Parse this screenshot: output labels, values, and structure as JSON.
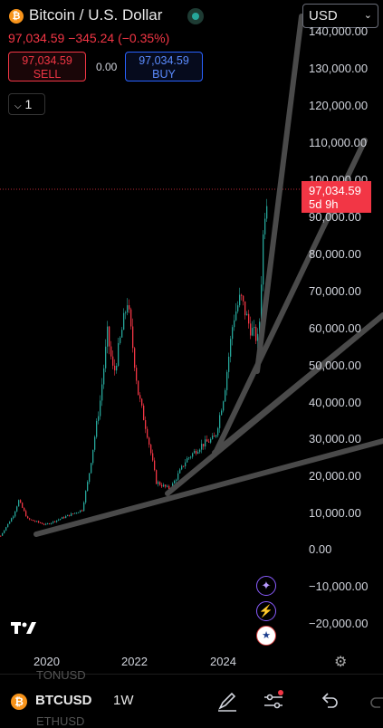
{
  "header": {
    "title": "Bitcoin / U.S. Dollar",
    "logo_symbol": "₿",
    "price": "97,034.59",
    "change": "−345.24 (−0.35%)"
  },
  "trade": {
    "sell_price": "97,034.59",
    "sell_label": "SELL",
    "spread": "0.00",
    "buy_price": "97,034.59",
    "buy_label": "BUY"
  },
  "interval_button": {
    "label": "1"
  },
  "currency": {
    "selected": "USD"
  },
  "price_tag": {
    "price": "97,034.59",
    "countdown": "5d 9h"
  },
  "y_axis": {
    "ticks": [
      "140,000.00",
      "130,000.00",
      "120,000.00",
      "110,000.00",
      "100,000.00",
      "90,000.00",
      "80,000.00",
      "70,000.00",
      "60,000.00",
      "50,000.00",
      "40,000.00",
      "30,000.00",
      "20,000.00",
      "10,000.00",
      "0.00",
      "−10,000.00",
      "−20,000.00"
    ]
  },
  "x_axis": {
    "ticks": [
      "2020",
      "2022",
      "2024"
    ]
  },
  "toolbar": {
    "symbol": "BTCUSD",
    "timeframe": "1W",
    "ghost_top": "TONUSD",
    "ghost_bottom": "ETHUSD"
  },
  "colors": {
    "up": "#26a69a",
    "down": "#f23645",
    "accent": "#2962ff",
    "trendline": "#4a4a4a"
  },
  "icons": [
    "bitcoin-logo",
    "chevron-down-icon",
    "compass-icon",
    "lightning-icon",
    "us-flag-icon",
    "gear-icon",
    "brush-icon",
    "sliders-icon",
    "undo-icon",
    "redo-icon"
  ]
}
